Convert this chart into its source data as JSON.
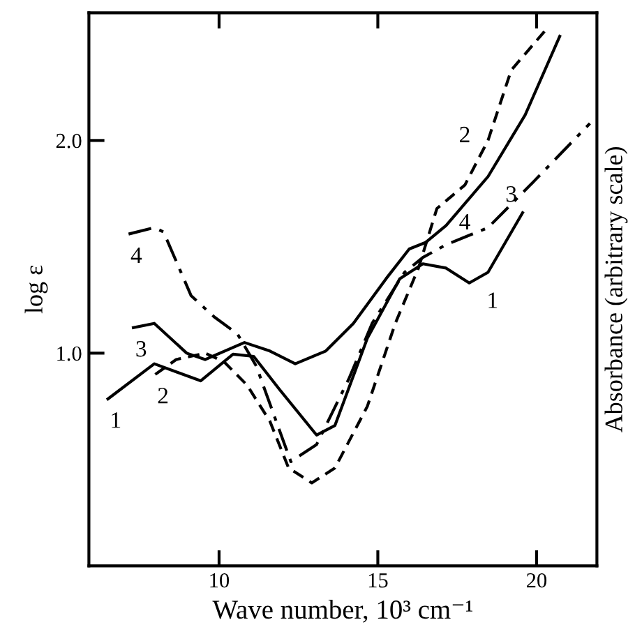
{
  "chart_data": {
    "type": "line",
    "xlabel": "Wave number, 10³ cm⁻¹",
    "ylabel": "log ε",
    "y2label": "Absorbance (arbitrary scale)",
    "xlim": [
      5.9,
      21.9
    ],
    "xticks": [
      10,
      15,
      20
    ],
    "ylim": [
      0,
      2.6
    ],
    "yticks": [
      {
        "value": 1,
        "label": "1.0"
      },
      {
        "value": 2,
        "label": "2.0"
      }
    ],
    "grid": false,
    "legend": false,
    "marker": "none",
    "series": [
      {
        "name": "1",
        "color": "#000000",
        "line_style": "solid",
        "x": [
          6.5,
          7.96,
          9.42,
          10.44,
          11.09,
          11.9,
          13.07,
          13.65,
          14.67,
          15.69,
          16.42,
          17.15,
          17.88,
          18.47,
          19.56
        ],
        "values": [
          0.785,
          0.95,
          0.87,
          0.995,
          0.985,
          0.83,
          0.615,
          0.66,
          1.07,
          1.35,
          1.42,
          1.4,
          1.33,
          1.38,
          1.66
        ]
      },
      {
        "name": "2",
        "color": "#000000",
        "line_style": "dashed",
        "x": [
          7.99,
          8.65,
          9.56,
          10.15,
          10.88,
          11.6,
          12.19,
          12.92,
          13.65,
          14.67,
          15.55,
          16.28,
          16.86,
          17.74,
          18.47,
          19.2,
          20.29
        ],
        "values": [
          0.9,
          0.97,
          1.0,
          0.96,
          0.85,
          0.68,
          0.46,
          0.39,
          0.46,
          0.75,
          1.14,
          1.4,
          1.68,
          1.79,
          2.0,
          2.33,
          2.52
        ]
      },
      {
        "name": "3",
        "color": "#000000",
        "line_style": "solid",
        "x": [
          7.3,
          7.96,
          8.98,
          9.56,
          10.8,
          11.6,
          12.4,
          13.36,
          14.23,
          15.26,
          15.99,
          16.5,
          17.15,
          18.47,
          19.64,
          20.73
        ],
        "values": [
          1.12,
          1.14,
          1.0,
          0.97,
          1.05,
          1.01,
          0.95,
          1.01,
          1.14,
          1.35,
          1.49,
          1.52,
          1.6,
          1.83,
          2.12,
          2.49
        ]
      },
      {
        "name": "4",
        "color": "#000000",
        "line_style": "dashdot",
        "x": [
          7.15,
          7.96,
          8.25,
          9.12,
          9.85,
          10.58,
          11.17,
          11.75,
          12.26,
          13.07,
          14.09,
          14.82,
          15.84,
          16.42,
          17.15,
          18.47,
          19.93,
          21.68
        ],
        "values": [
          1.56,
          1.59,
          1.57,
          1.27,
          1.17,
          1.09,
          0.94,
          0.7,
          0.49,
          0.57,
          0.88,
          1.14,
          1.38,
          1.45,
          1.51,
          1.59,
          1.81,
          2.08
        ]
      }
    ]
  }
}
